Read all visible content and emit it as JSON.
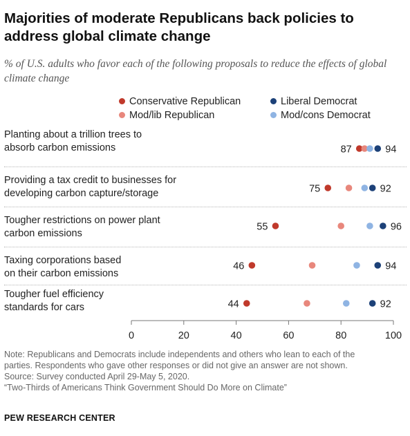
{
  "title": "Majorities of moderate Republicans back policies to address global climate change",
  "subtitle": "% of U.S. adults who favor each of the following proposals to reduce the effects of global climate change",
  "note": {
    "line1": "Note: Republicans and Democrats include independents and others who lean to each of the",
    "line2": "parties. Respondents who gave other responses or did not give an answer are not shown.",
    "source": "Source: Survey conducted April 29-May 5, 2020.",
    "report": "“Two-Thirds of Americans Think Government Should Do More on Climate”"
  },
  "brand": "PEW RESEARCH CENTER",
  "colors": {
    "conservative_republican": "#c0392b",
    "modlib_republican": "#e8877c",
    "liberal_democrat": "#1c4178",
    "modcons_democrat": "#8fb4e3",
    "axis": "#777777"
  },
  "chart_data": {
    "type": "scatter",
    "title": "Majorities of moderate Republicans back policies to address global climate change",
    "subtitle": "% of U.S. adults who favor each of the following proposals to reduce the effects of global climate change",
    "categories": [
      "Planting about a trillion trees to absorb carbon emissions",
      "Providing a tax credit to businesses for developing carbon capture/storage",
      "Tougher restrictions on power plant carbon emissions",
      "Taxing corporations based on their carbon emissions",
      "Tougher fuel efficiency standards for cars"
    ],
    "category_lines": [
      [
        "Planting about a trillion trees to",
        "absorb carbon emissions"
      ],
      [
        "Providing a tax credit to businesses for",
        "developing carbon capture/storage"
      ],
      [
        "Tougher restrictions on power plant",
        "carbon emissions"
      ],
      [
        "Taxing corporations based",
        "on their carbon emissions"
      ],
      [
        "Tougher fuel efficiency",
        "standards for cars"
      ]
    ],
    "series": [
      {
        "name": "Conservative Republican",
        "color": "#c0392b",
        "values": [
          87,
          75,
          55,
          46,
          44
        ],
        "labeled": true
      },
      {
        "name": "Mod/lib Republican",
        "color": "#e8877c",
        "values": [
          89,
          83,
          80,
          69,
          67
        ],
        "labeled": false
      },
      {
        "name": "Mod/cons Democrat",
        "color": "#8fb4e3",
        "values": [
          91,
          89,
          91,
          86,
          82
        ],
        "labeled": false
      },
      {
        "name": "Liberal Democrat",
        "color": "#1c4178",
        "values": [
          94,
          92,
          96,
          94,
          92
        ],
        "labeled": true
      }
    ],
    "legend": [
      {
        "name": "Conservative Republican",
        "color": "#c0392b"
      },
      {
        "name": "Liberal Democrat",
        "color": "#1c4178"
      },
      {
        "name": "Mod/lib Republican",
        "color": "#e8877c"
      },
      {
        "name": "Mod/cons Democrat",
        "color": "#8fb4e3"
      }
    ],
    "xlim": [
      0,
      100
    ],
    "xticks": [
      0,
      20,
      40,
      60,
      80,
      100
    ],
    "grid": false,
    "legend_position": "top"
  }
}
